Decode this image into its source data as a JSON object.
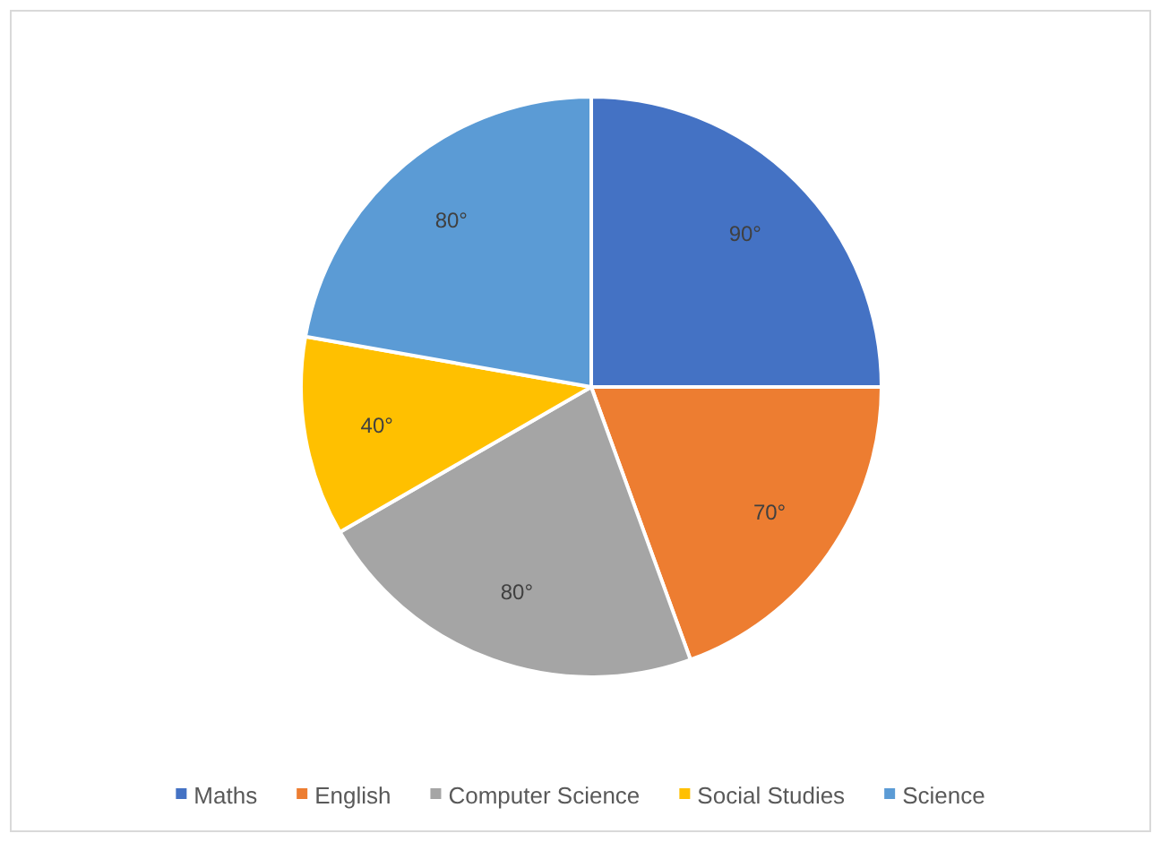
{
  "chart_data": {
    "type": "pie",
    "categories": [
      "Maths",
      "English",
      "Computer Science",
      "Social Studies",
      "Science"
    ],
    "values": [
      90,
      70,
      80,
      40,
      80
    ],
    "value_labels": [
      "90°",
      "70°",
      "80°",
      "40°",
      "80°"
    ],
    "colors": [
      "#4472c4",
      "#ed7d31",
      "#a5a5a5",
      "#ffc000",
      "#5b9bd5"
    ],
    "legend": "bottom"
  }
}
